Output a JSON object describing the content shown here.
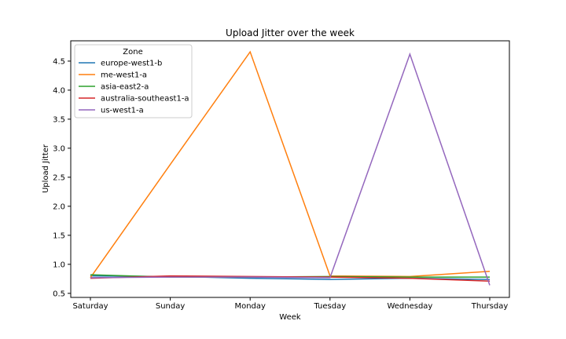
{
  "chart_data": {
    "type": "line",
    "title": "Upload Jitter over the week",
    "xlabel": "Week",
    "ylabel": "Upload Jitter",
    "categories": [
      "Saturday",
      "Sunday",
      "Monday",
      "Tuesday",
      "Wednesday",
      "Thursday"
    ],
    "ylim": [
      0.43,
      4.85
    ],
    "yticks": [
      "0.5",
      "1.0",
      "1.5",
      "2.0",
      "2.5",
      "3.0",
      "3.5",
      "4.0",
      "4.5"
    ],
    "grid": false,
    "legend": {
      "title": "Zone",
      "placement": "top-left"
    },
    "series": [
      {
        "name": "europe-west1-b",
        "color": "#1f77b4",
        "values": [
          0.8,
          0.79,
          0.76,
          0.74,
          0.76,
          0.74
        ]
      },
      {
        "name": "me-west1-a",
        "color": "#ff7f0e",
        "values": [
          0.77,
          2.72,
          4.66,
          0.8,
          0.79,
          0.88
        ]
      },
      {
        "name": "asia-east2-a",
        "color": "#2ca02c",
        "values": [
          0.82,
          0.78,
          0.78,
          0.79,
          0.78,
          0.78
        ]
      },
      {
        "name": "australia-southeast1-a",
        "color": "#d62728",
        "values": [
          0.76,
          0.8,
          0.79,
          0.78,
          0.76,
          0.71
        ]
      },
      {
        "name": "us-west1-a",
        "color": "#9467bd",
        "values": [
          0.77,
          0.78,
          0.78,
          0.77,
          4.62,
          0.64
        ]
      }
    ]
  }
}
